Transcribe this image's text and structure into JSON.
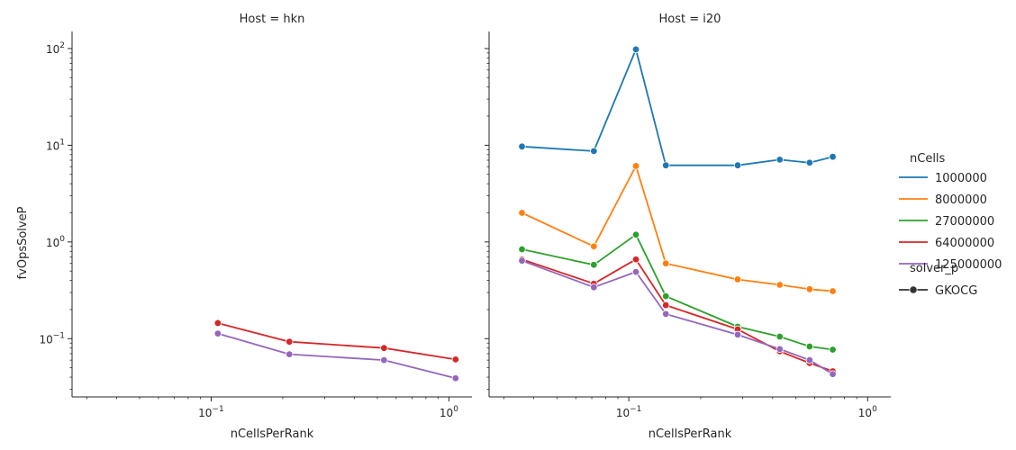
{
  "chart_data": {
    "type": "line",
    "x_scale": "log",
    "y_scale": "log",
    "ylabel": "fvOpsSolveP",
    "xlim": [
      0.026,
      1.25
    ],
    "ylim": [
      0.025,
      150
    ],
    "x_major_ticks": [
      {
        "value": 0.1,
        "base": "10",
        "exp": "−1"
      },
      {
        "value": 1,
        "base": "10",
        "exp": "0"
      }
    ],
    "y_major_ticks": [
      {
        "value": 0.1,
        "base": "10",
        "exp": "−1"
      },
      {
        "value": 1,
        "base": "10",
        "exp": "0"
      },
      {
        "value": 10,
        "base": "10",
        "exp": "1"
      },
      {
        "value": 100,
        "base": "10",
        "exp": "2"
      }
    ],
    "legend": {
      "placement": "right",
      "hue_title": "nCells",
      "style_title": "solver_p",
      "style_entries": [
        "GKOCG"
      ]
    },
    "facets": [
      {
        "title": "Host = hkn",
        "xlabel": "nCellsPerRank",
        "series": [
          {
            "name": "64000000",
            "color": "#d62728",
            "x": [
              0.1067,
              0.2133,
              0.5333,
              1.0667
            ],
            "y": [
              0.145,
              0.093,
              0.08,
              0.061
            ]
          },
          {
            "name": "125000000",
            "color": "#9467bd",
            "x": [
              0.1067,
              0.2133,
              0.5333,
              1.0667
            ],
            "y": [
              0.113,
              0.069,
              0.06,
              0.039
            ]
          }
        ]
      },
      {
        "title": "Host = i20",
        "xlabel": "nCellsPerRank",
        "series": [
          {
            "name": "1000000",
            "color": "#1f77b4",
            "x": [
              0.0357,
              0.0714,
              0.1071,
              0.1429,
              0.2857,
              0.4286,
              0.5714,
              0.7143
            ],
            "y": [
              9.7,
              8.7,
              98,
              6.2,
              6.2,
              7.1,
              6.6,
              7.6
            ]
          },
          {
            "name": "8000000",
            "color": "#ff7f0e",
            "x": [
              0.0357,
              0.0714,
              0.1071,
              0.1429,
              0.2857,
              0.4286,
              0.5714,
              0.7143
            ],
            "y": [
              2.0,
              0.9,
              6.1,
              0.6,
              0.41,
              0.36,
              0.325,
              0.31
            ]
          },
          {
            "name": "27000000",
            "color": "#2ca02c",
            "x": [
              0.0357,
              0.0714,
              0.1071,
              0.1429,
              0.2857,
              0.4286,
              0.5714,
              0.7143
            ],
            "y": [
              0.84,
              0.58,
              1.19,
              0.275,
              0.133,
              0.105,
              0.083,
              0.077
            ]
          },
          {
            "name": "64000000",
            "color": "#d62728",
            "x": [
              0.0357,
              0.0714,
              0.1071,
              0.1429,
              0.2857,
              0.4286,
              0.5714,
              0.7143
            ],
            "y": [
              0.66,
              0.37,
              0.66,
              0.222,
              0.125,
              0.074,
              0.056,
              0.046
            ]
          },
          {
            "name": "125000000",
            "color": "#9467bd",
            "x": [
              0.0357,
              0.0714,
              0.1071,
              0.1429,
              0.2857,
              0.4286,
              0.5714,
              0.7143
            ],
            "y": [
              0.64,
              0.34,
              0.49,
              0.18,
              0.11,
              0.078,
              0.06,
              0.043
            ]
          }
        ]
      }
    ]
  }
}
